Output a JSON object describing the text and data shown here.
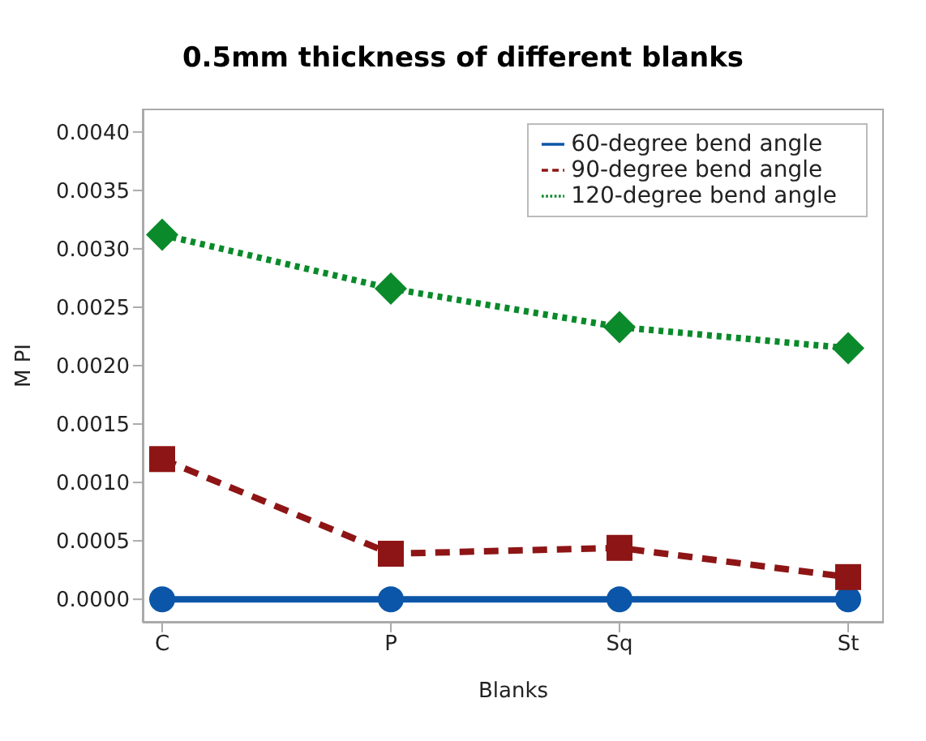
{
  "chart_data": {
    "type": "line",
    "title": "0.5mm thickness of different blanks",
    "xlabel": "Blanks",
    "ylabel": "M PI",
    "categories": [
      "C",
      "P",
      "Sq",
      "St"
    ],
    "series": [
      {
        "name": "60-degree bend angle",
        "color": "#0b56a8",
        "values": [
          0,
          0,
          0,
          0
        ],
        "marker": "circle",
        "line_style": "solid"
      },
      {
        "name": "90-degree bend angle",
        "color": "#8e1515",
        "values": [
          0.0012,
          0.00039,
          0.00044,
          0.00019
        ],
        "marker": "square",
        "line_style": "dashed"
      },
      {
        "name": "120-degree bend angle",
        "color": "#0a8a2a",
        "values": [
          0.00312,
          0.00266,
          0.00233,
          0.00215
        ],
        "marker": "diamond",
        "line_style": "dotted"
      }
    ],
    "ylim": [
      -0.0002,
      0.0042
    ],
    "yticks": [
      {
        "value": 0,
        "label": "0.0000"
      },
      0.0005,
      {
        "value": 0.001,
        "label": "0.0010"
      },
      0.0015,
      {
        "value": 0.002,
        "label": "0.0020"
      },
      0.0025,
      {
        "value": 0.003,
        "label": "0.0030"
      },
      0.0035,
      {
        "value": 0.004,
        "label": "0.0040"
      }
    ],
    "grid": false,
    "legend": "top right"
  }
}
